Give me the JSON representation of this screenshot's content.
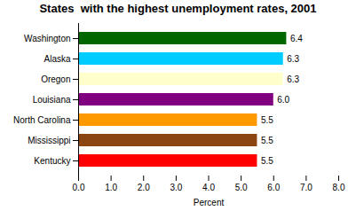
{
  "chart_data": {
    "type": "bar",
    "orientation": "horizontal",
    "title": "States  with the highest unemployment rates, 2001",
    "categories": [
      "Washington",
      "Alaska",
      "Oregon",
      "Louisiana",
      "North Carolina",
      "Mississippi",
      "Kentucky"
    ],
    "values": [
      6.4,
      6.3,
      6.3,
      6.0,
      5.5,
      5.5,
      5.5
    ],
    "value_labels": [
      "6.4",
      "6.3",
      "6.3",
      "6.0",
      "5.5",
      "5.5",
      "5.5"
    ],
    "data_labels": true,
    "colors": [
      "#006600",
      "#00ccff",
      "#ffffcc",
      "#800080",
      "#ff9900",
      "#8B4513",
      "#ff0000"
    ],
    "xlabel": "Percent",
    "xlim": [
      0,
      8.0
    ],
    "xticks": [
      {
        "value": 0,
        "label": "0.0"
      },
      {
        "value": 1,
        "label": "1.0"
      },
      {
        "value": 2,
        "label": "2.0"
      },
      {
        "value": 3,
        "label": "3.0"
      },
      {
        "value": 4,
        "label": "4.0"
      },
      {
        "value": 5,
        "label": "5.0"
      },
      {
        "value": 6,
        "label": "6.0"
      },
      {
        "value": 7,
        "label": "7.0"
      },
      {
        "value": 8,
        "label": "8.0"
      }
    ]
  }
}
